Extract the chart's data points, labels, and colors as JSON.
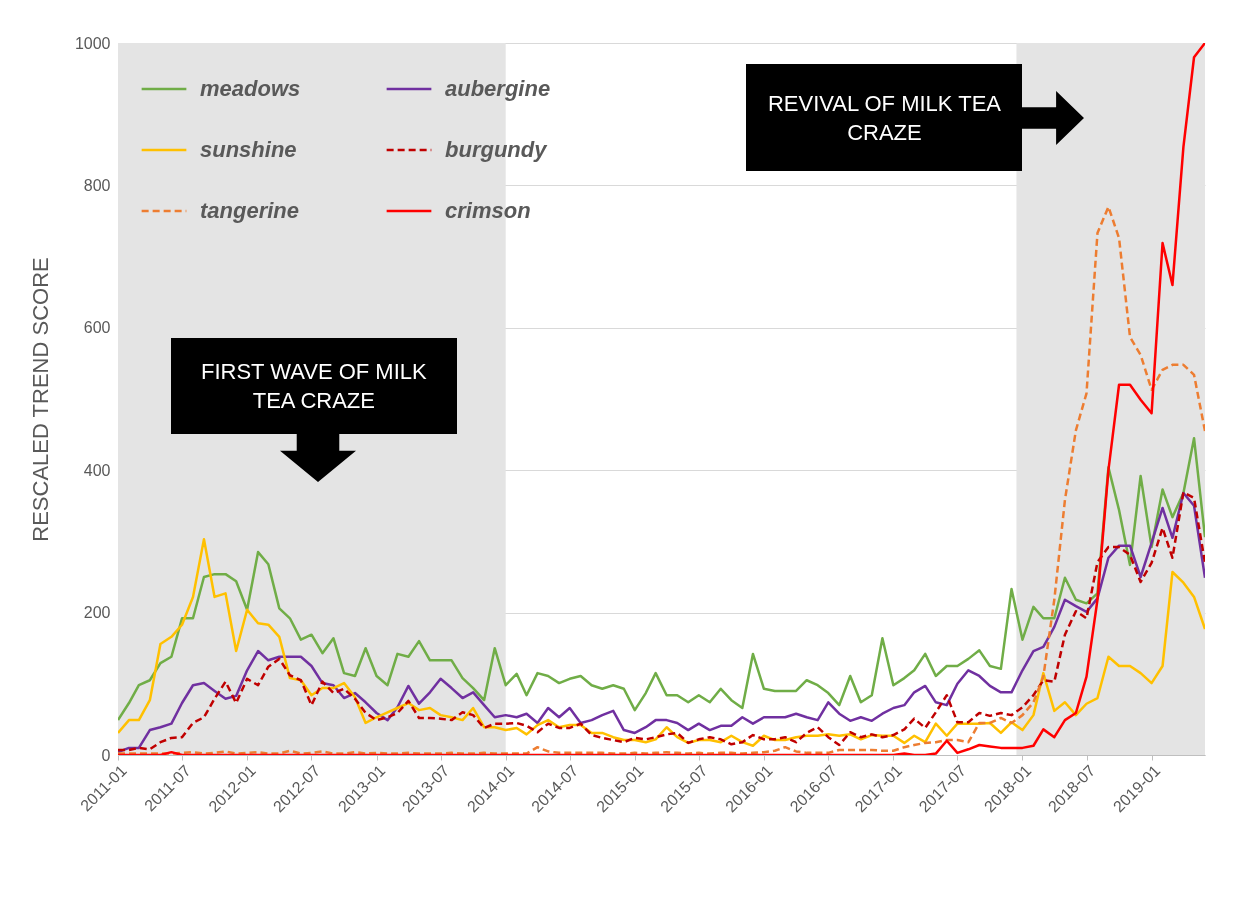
{
  "chart_data": {
    "type": "line",
    "ylabel": "RESCALED TREND SCORE",
    "x": [
      "2011-01",
      "2011-02",
      "2011-03",
      "2011-04",
      "2011-05",
      "2011-06",
      "2011-07",
      "2011-08",
      "2011-09",
      "2011-10",
      "2011-11",
      "2011-12",
      "2012-01",
      "2012-02",
      "2012-03",
      "2012-04",
      "2012-05",
      "2012-06",
      "2012-07",
      "2012-08",
      "2012-09",
      "2012-10",
      "2012-11",
      "2012-12",
      "2013-01",
      "2013-02",
      "2013-03",
      "2013-04",
      "2013-05",
      "2013-06",
      "2013-07",
      "2013-08",
      "2013-09",
      "2013-10",
      "2013-11",
      "2013-12",
      "2014-01",
      "2014-02",
      "2014-03",
      "2014-04",
      "2014-05",
      "2014-06",
      "2014-07",
      "2014-08",
      "2014-09",
      "2014-10",
      "2014-11",
      "2014-12",
      "2015-01",
      "2015-02",
      "2015-03",
      "2015-04",
      "2015-05",
      "2015-06",
      "2015-07",
      "2015-08",
      "2015-09",
      "2015-10",
      "2015-11",
      "2015-12",
      "2016-01",
      "2016-02",
      "2016-03",
      "2016-04",
      "2016-05",
      "2016-06",
      "2016-07",
      "2016-08",
      "2016-09",
      "2016-10",
      "2016-11",
      "2016-12",
      "2017-01",
      "2017-02",
      "2017-03",
      "2017-04",
      "2017-05",
      "2017-06",
      "2017-07",
      "2017-08",
      "2017-09",
      "2017-10",
      "2017-11",
      "2017-12",
      "2018-01",
      "2018-02",
      "2018-03",
      "2018-04",
      "2018-05",
      "2018-06",
      "2018-07",
      "2018-08",
      "2018-09",
      "2018-10",
      "2018-11",
      "2018-12",
      "2019-01",
      "2019-02",
      "2019-03",
      "2019-04",
      "2019-05",
      "2019-06"
    ],
    "series": [
      {
        "name": "meadows",
        "color": "#70ad47",
        "line_style": "solid",
        "values": [
          49,
          73,
          98,
          105,
          129,
          138,
          192,
          192,
          250,
          254,
          254,
          244,
          204,
          285,
          268,
          206,
          192,
          162,
          169,
          143,
          164,
          115,
          111,
          150,
          111,
          98,
          142,
          138,
          160,
          133,
          133,
          133,
          108,
          94,
          77,
          150,
          98,
          114,
          84,
          115,
          111,
          101,
          107,
          111,
          98,
          93,
          98,
          93,
          63,
          87,
          115,
          84,
          84,
          74,
          84,
          74,
          93,
          77,
          66,
          142,
          93,
          90,
          90,
          90,
          105,
          98,
          87,
          70,
          111,
          74,
          84,
          164,
          98,
          108,
          119,
          142,
          111,
          125,
          125,
          135,
          147,
          125,
          121,
          233,
          162,
          208,
          192,
          192,
          249,
          218,
          213,
          227,
          404,
          344,
          267,
          392,
          292,
          373,
          334,
          368,
          445,
          306
        ]
      },
      {
        "name": "aubergine",
        "color": "#7030a0",
        "line_style": "solid",
        "values": [
          4,
          10,
          10,
          35,
          39,
          44,
          73,
          98,
          101,
          90,
          79,
          83,
          119,
          146,
          133,
          138,
          138,
          138,
          125,
          101,
          98,
          80,
          87,
          74,
          59,
          49,
          67,
          97,
          72,
          88,
          107,
          94,
          80,
          88,
          70,
          53,
          56,
          53,
          58,
          45,
          66,
          53,
          66,
          45,
          49,
          56,
          62,
          35,
          31,
          39,
          49,
          49,
          45,
          35,
          44,
          35,
          41,
          41,
          53,
          44,
          53,
          53,
          53,
          58,
          53,
          49,
          74,
          58,
          48,
          53,
          48,
          58,
          66,
          70,
          88,
          97,
          74,
          70,
          100,
          119,
          111,
          97,
          88,
          88,
          119,
          146,
          152,
          180,
          218,
          209,
          201,
          220,
          277,
          294,
          294,
          250,
          298,
          347,
          305,
          368,
          350,
          249
        ]
      },
      {
        "name": "sunshine",
        "color": "#ffc000",
        "line_style": "solid",
        "values": [
          31,
          49,
          49,
          77,
          156,
          166,
          183,
          222,
          303,
          222,
          227,
          146,
          204,
          185,
          183,
          166,
          108,
          105,
          84,
          94,
          94,
          101,
          81,
          45,
          53,
          60,
          66,
          73,
          63,
          66,
          56,
          53,
          49,
          66,
          39,
          39,
          35,
          38,
          29,
          42,
          49,
          39,
          42,
          42,
          31,
          31,
          25,
          21,
          21,
          18,
          22,
          39,
          25,
          17,
          21,
          21,
          18,
          27,
          18,
          13,
          27,
          21,
          21,
          25,
          27,
          27,
          29,
          27,
          29,
          22,
          28,
          27,
          27,
          17,
          27,
          18,
          44,
          27,
          44,
          44,
          44,
          45,
          31,
          46,
          35,
          56,
          115,
          62,
          74,
          56,
          72,
          80,
          138,
          125,
          125,
          115,
          101,
          125,
          257,
          242,
          222,
          177
        ]
      },
      {
        "name": "burgundy",
        "color": "#c00000",
        "line_style": "dashed",
        "values": [
          7,
          7,
          10,
          8,
          18,
          24,
          25,
          45,
          53,
          79,
          103,
          73,
          107,
          98,
          124,
          135,
          112,
          105,
          70,
          103,
          87,
          93,
          79,
          59,
          49,
          53,
          59,
          76,
          52,
          52,
          51,
          49,
          60,
          56,
          38,
          44,
          44,
          45,
          41,
          32,
          44,
          38,
          38,
          44,
          28,
          24,
          21,
          18,
          24,
          22,
          25,
          29,
          31,
          17,
          22,
          25,
          22,
          15,
          18,
          28,
          22,
          22,
          25,
          18,
          31,
          39,
          25,
          14,
          32,
          25,
          29,
          25,
          28,
          36,
          51,
          38,
          60,
          84,
          46,
          46,
          59,
          55,
          59,
          56,
          67,
          84,
          105,
          103,
          169,
          202,
          192,
          271,
          292,
          292,
          281,
          243,
          270,
          319,
          277,
          369,
          361,
          270
        ]
      },
      {
        "name": "tangerine",
        "color": "#ed7d31",
        "line_style": "dashed",
        "values": [
          2,
          2,
          2,
          2,
          2,
          2,
          3,
          4,
          2,
          3,
          5,
          2,
          3,
          4,
          2,
          2,
          6,
          2,
          3,
          5,
          2,
          2,
          4,
          2,
          3,
          2,
          2,
          3,
          2,
          2,
          2,
          3,
          2,
          2,
          3,
          2,
          2,
          2,
          2,
          11,
          5,
          3,
          3,
          3,
          3,
          3,
          2,
          2,
          3,
          2,
          3,
          4,
          3,
          2,
          3,
          2,
          3,
          3,
          2,
          3,
          4,
          6,
          11,
          5,
          3,
          3,
          3,
          7,
          7,
          7,
          7,
          6,
          6,
          11,
          14,
          17,
          18,
          21,
          21,
          18,
          45,
          45,
          52,
          45,
          56,
          74,
          110,
          218,
          358,
          456,
          508,
          733,
          770,
          726,
          587,
          562,
          513,
          541,
          548,
          548,
          534,
          455
        ]
      },
      {
        "name": "crimson",
        "color": "#ff0000",
        "line_style": "solid",
        "values": [
          0,
          0,
          0,
          0,
          0,
          4,
          0,
          0,
          0,
          0,
          0,
          0,
          0,
          0,
          0,
          0,
          0,
          0,
          0,
          0,
          0,
          0,
          0,
          0,
          0,
          0,
          0,
          0,
          0,
          0,
          0,
          0,
          0,
          0,
          0,
          0,
          0,
          0,
          0,
          0,
          0,
          0,
          0,
          0,
          0,
          0,
          0,
          0,
          0,
          0,
          0,
          0,
          0,
          0,
          0,
          0,
          0,
          0,
          0,
          0,
          0,
          0,
          0,
          0,
          0,
          0,
          0,
          0,
          0,
          0,
          0,
          0,
          0,
          2,
          0,
          0,
          2,
          20,
          3,
          8,
          14,
          12,
          10,
          10,
          10,
          13,
          36,
          25,
          49,
          59,
          110,
          218,
          400,
          520,
          520,
          499,
          480,
          719,
          660,
          854,
          980,
          1000
        ]
      }
    ],
    "xlim": [
      "2011-01",
      "2019-06"
    ],
    "ylim": [
      0,
      1000
    ],
    "xticks": [
      "2011-01",
      "2011-07",
      "2012-01",
      "2012-07",
      "2013-01",
      "2013-07",
      "2014-01",
      "2014-07",
      "2015-01",
      "2015-07",
      "2016-01",
      "2016-07",
      "2017-01",
      "2017-07",
      "2018-01",
      "2018-07",
      "2019-01"
    ],
    "yticks": [
      0,
      200,
      400,
      600,
      800,
      1000
    ],
    "grid": "y",
    "legend": "top left",
    "bands": [
      {
        "axis": "x",
        "from": "2011-01",
        "to": "2014-01",
        "label": "FIRST WAVE OF MILK TEA CRAZE",
        "color": "#e4e4e4"
      },
      {
        "axis": "x",
        "from": "2017-12-15",
        "to": "2019-06",
        "label": "REVIVAL OF MILK TEA CRAZE",
        "color": "#e4e4e4"
      }
    ]
  }
}
